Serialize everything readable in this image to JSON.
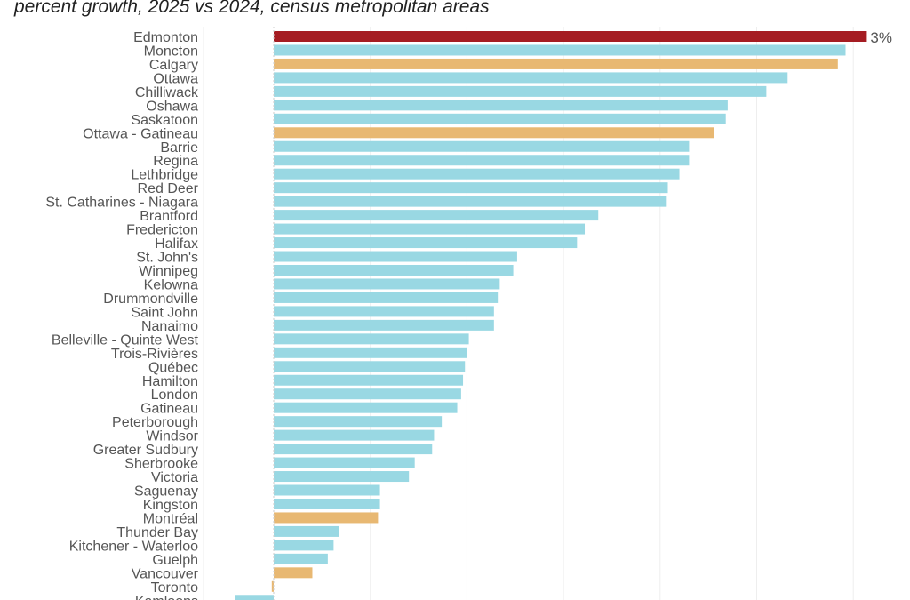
{
  "chart_data": {
    "type": "bar",
    "orientation": "horizontal",
    "title": "percent growth, 2025 vs 2024, census metropolitan areas",
    "xlabel": "",
    "ylabel": "",
    "xlim": [
      -0.2,
      3.1
    ],
    "grid": true,
    "unit": "%",
    "colors": {
      "default": "#99d8e3",
      "highlight_top": "#a51c22",
      "highlight": "#e8b872"
    },
    "categories": [
      "Edmonton",
      "Moncton",
      "Calgary",
      "Ottawa",
      "Chilliwack",
      "Oshawa",
      "Saskatoon",
      "Ottawa - Gatineau",
      "Barrie",
      "Regina",
      "Lethbridge",
      "Red Deer",
      "St. Catharines - Niagara",
      "Brantford",
      "Fredericton",
      "Halifax",
      "St. John's",
      "Winnipeg",
      "Kelowna",
      "Drummondville",
      "Saint John",
      "Nanaimo",
      "Belleville - Quinte West",
      "Trois-Rivières",
      "Québec",
      "Hamilton",
      "London",
      "Gatineau",
      "Peterborough",
      "Windsor",
      "Greater Sudbury",
      "Sherbrooke",
      "Victoria",
      "Saguenay",
      "Kingston",
      "Montréal",
      "Thunder Bay",
      "Kitchener - Waterloo",
      "Guelph",
      "Vancouver",
      "Toronto",
      "Kamloops"
    ],
    "values": [
      3.07,
      2.96,
      2.92,
      2.66,
      2.55,
      2.35,
      2.34,
      2.28,
      2.15,
      2.15,
      2.1,
      2.04,
      2.03,
      1.68,
      1.61,
      1.57,
      1.26,
      1.24,
      1.17,
      1.16,
      1.14,
      1.14,
      1.01,
      1.0,
      0.99,
      0.98,
      0.97,
      0.95,
      0.87,
      0.83,
      0.82,
      0.73,
      0.7,
      0.55,
      0.55,
      0.54,
      0.34,
      0.31,
      0.28,
      0.2,
      -0.01,
      -0.2
    ],
    "bar_colors": [
      "highlight_top",
      "default",
      "highlight",
      "default",
      "default",
      "default",
      "default",
      "highlight",
      "default",
      "default",
      "default",
      "default",
      "default",
      "default",
      "default",
      "default",
      "default",
      "default",
      "default",
      "default",
      "default",
      "default",
      "default",
      "default",
      "default",
      "default",
      "default",
      "default",
      "default",
      "default",
      "default",
      "default",
      "default",
      "default",
      "default",
      "highlight",
      "default",
      "default",
      "default",
      "highlight",
      "highlight",
      "default"
    ],
    "data_labels": [
      {
        "category": "Edmonton",
        "text": "3%"
      }
    ]
  }
}
